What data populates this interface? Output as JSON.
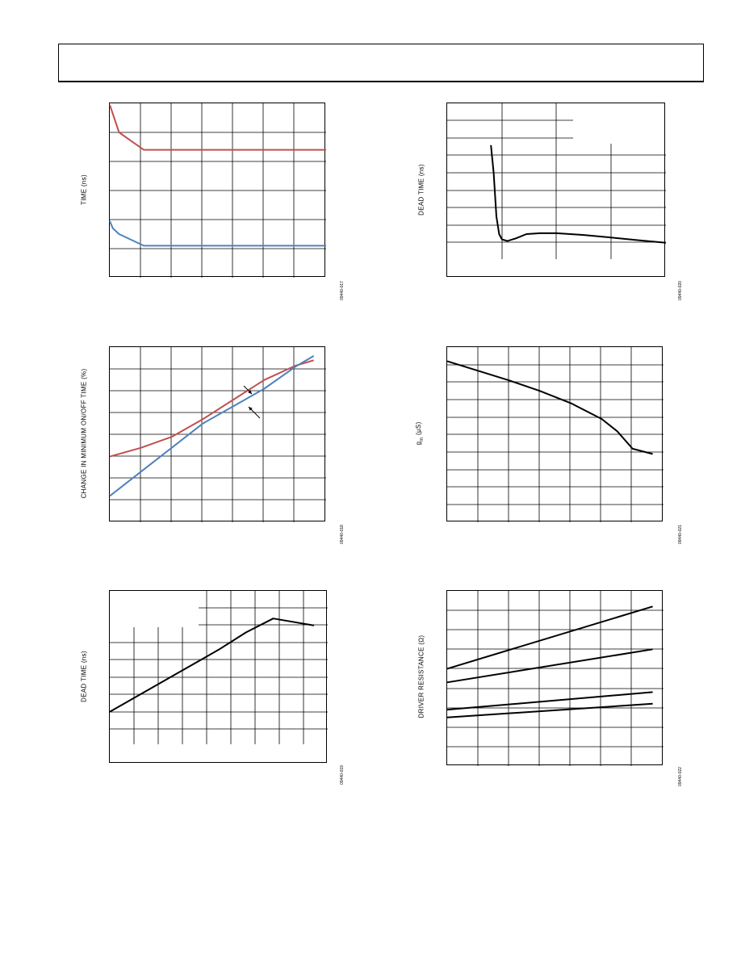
{
  "page": {
    "header": ""
  },
  "charts": [
    {
      "id": "c1",
      "ylabel": "TIME (ns)",
      "figure_id": "09440-017"
    },
    {
      "id": "c2",
      "ylabel": "DEAD TIME (ns)",
      "figure_id": "09440-020"
    },
    {
      "id": "c3",
      "ylabel": "CHANGE IN MINIMUM ON/OFF TIME (%)",
      "figure_id": "09440-018"
    },
    {
      "id": "c4",
      "ylabel_main": "g",
      "ylabel_sub": "m",
      "ylabel_rest": " (µS)",
      "figure_id": "09440-021"
    },
    {
      "id": "c5",
      "ylabel": "DEAD TIME (ns)",
      "figure_id": "09440-019"
    },
    {
      "id": "c6",
      "ylabel": "DRIVER RESISTANCE (Ω)",
      "figure_id": "09440-022"
    }
  ],
  "colors": {
    "red": "#c0504d",
    "blue": "#4f81bd",
    "black": "#000000"
  },
  "chart_data": [
    {
      "type": "line",
      "ylabel": "TIME (ns)",
      "xlim": [
        0,
        7
      ],
      "ylim": [
        0,
        6
      ],
      "series": [
        {
          "color": "#c0504d",
          "x": [
            0,
            0.3,
            0.7,
            1.1,
            7
          ],
          "y": [
            5.95,
            5.0,
            4.7,
            4.4,
            4.4
          ]
        },
        {
          "color": "#4f81bd",
          "x": [
            0,
            0.1,
            0.3,
            0.6,
            1.1,
            7
          ],
          "y": [
            1.95,
            1.7,
            1.5,
            1.35,
            1.1,
            1.1
          ]
        }
      ]
    },
    {
      "type": "line",
      "ylabel": "DEAD TIME (ns)",
      "xlim": [
        0,
        4
      ],
      "ylim": [
        0,
        10
      ],
      "series": [
        {
          "color": "#000000",
          "x": [
            0.8,
            0.85,
            0.9,
            0.95,
            1.0,
            1.1,
            1.25,
            1.45,
            1.7,
            2.0,
            2.5,
            3.0,
            3.5,
            4.0
          ],
          "y": [
            7.6,
            6.0,
            3.5,
            2.5,
            2.2,
            2.1,
            2.25,
            2.5,
            2.55,
            2.55,
            2.45,
            2.3,
            2.15,
            2.0
          ]
        }
      ]
    },
    {
      "type": "line",
      "ylabel": "CHANGE IN MINIMUM ON/OFF TIME (%)",
      "xlim": [
        0,
        7
      ],
      "ylim": [
        0,
        8
      ],
      "series": [
        {
          "color": "#c0504d",
          "x": [
            0,
            1,
            2,
            3,
            4,
            5,
            6,
            6.6
          ],
          "y": [
            3.0,
            3.4,
            3.9,
            4.7,
            5.6,
            6.5,
            7.15,
            7.4
          ]
        },
        {
          "color": "#4f81bd",
          "x": [
            0,
            1,
            2,
            3,
            4,
            5,
            6,
            6.6
          ],
          "y": [
            1.2,
            2.3,
            3.4,
            4.5,
            5.3,
            6.1,
            7.1,
            7.6
          ]
        }
      ]
    },
    {
      "type": "line",
      "ylabel": "gm (µS)",
      "xlim": [
        0,
        7
      ],
      "ylim": [
        0,
        10
      ],
      "series": [
        {
          "color": "#000000",
          "x": [
            0,
            1,
            2,
            3,
            4,
            5,
            5.5,
            6,
            6.65
          ],
          "y": [
            9.2,
            8.65,
            8.1,
            7.5,
            6.8,
            5.9,
            5.2,
            4.2,
            3.9
          ]
        }
      ]
    },
    {
      "type": "line",
      "ylabel": "DEAD TIME (ns)",
      "xlim": [
        0,
        8
      ],
      "ylim": [
        0,
        10
      ],
      "series": [
        {
          "color": "#000000",
          "x": [
            0,
            1,
            2,
            3,
            4,
            5,
            6,
            7.5
          ],
          "y": [
            3.0,
            3.9,
            4.8,
            5.7,
            6.6,
            7.6,
            8.4,
            8.0
          ]
        }
      ]
    },
    {
      "type": "line",
      "ylabel": "DRIVER RESISTANCE (Ω)",
      "xlim": [
        0,
        7
      ],
      "ylim": [
        0,
        9
      ],
      "series": [
        {
          "color": "#000000",
          "x": [
            0,
            6.65
          ],
          "y": [
            5.0,
            8.2
          ]
        },
        {
          "color": "#000000",
          "x": [
            0,
            6.65
          ],
          "y": [
            4.3,
            6.0
          ]
        },
        {
          "color": "#000000",
          "x": [
            0,
            6.65
          ],
          "y": [
            2.9,
            3.8
          ]
        },
        {
          "color": "#000000",
          "x": [
            0,
            6.65
          ],
          "y": [
            2.5,
            3.2
          ]
        }
      ]
    }
  ]
}
